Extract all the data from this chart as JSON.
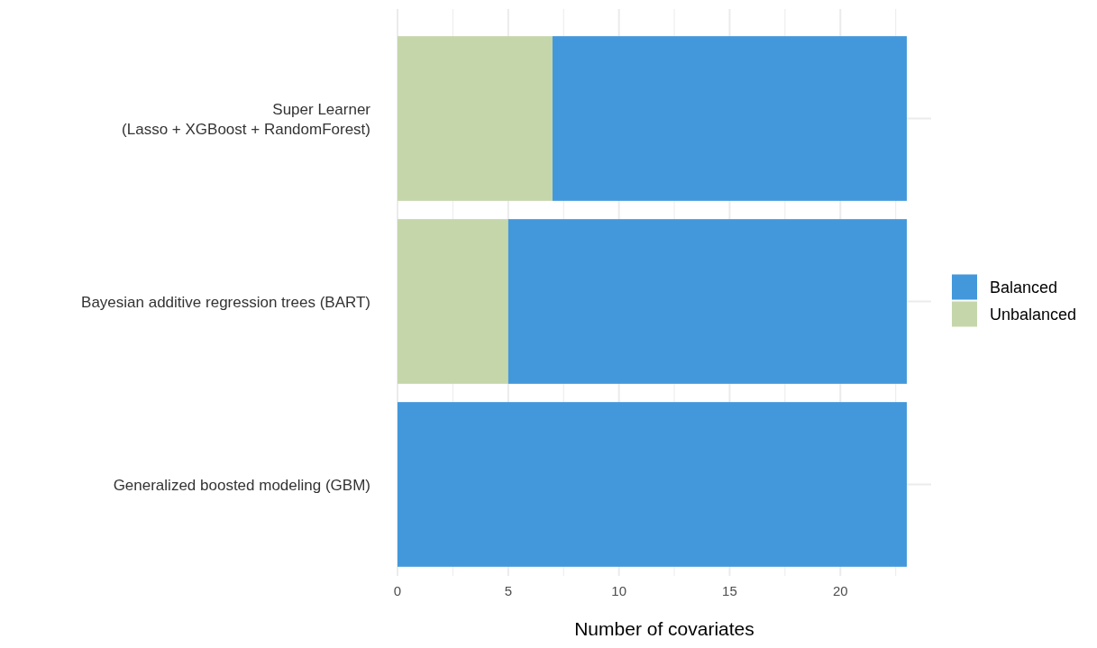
{
  "chart_data": {
    "type": "bar",
    "orientation": "horizontal",
    "stacked": true,
    "xlabel": "Number of covariates",
    "categories": [
      "Super Learner\n(Lasso + XGBoost + RandomForest)",
      "Bayesian additive regression trees (BART)",
      "Generalized boosted modeling (GBM)"
    ],
    "series": [
      {
        "name": "Unbalanced",
        "color": "#c5d6ab",
        "values": [
          7,
          5,
          0
        ]
      },
      {
        "name": "Balanced",
        "color": "#4398db",
        "values": [
          16,
          18,
          23
        ]
      }
    ],
    "xlim": [
      0,
      24.1
    ],
    "xticks": [
      0,
      {
        "value": 2.5,
        "label": null
      },
      5,
      {
        "value": 7.5,
        "label": null
      },
      10,
      {
        "value": 12.5,
        "label": null
      },
      15,
      {
        "value": 17.5,
        "label": null
      },
      20,
      {
        "value": 22.5,
        "label": null
      }
    ],
    "grid": true,
    "legend": "right"
  }
}
